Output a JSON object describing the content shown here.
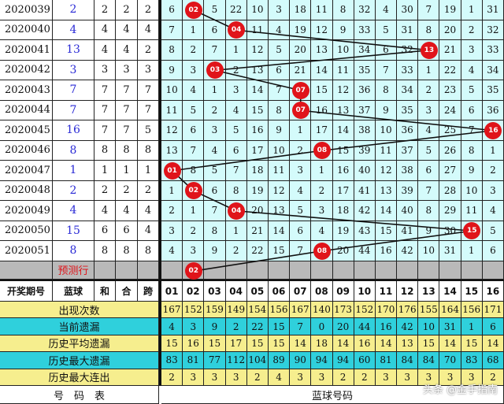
{
  "rows": [
    {
      "period": "2020039",
      "blue": "2",
      "he": "2",
      "mod": "2",
      "span": "2",
      "cells": [
        "6",
        "02",
        "5",
        "22",
        "10",
        "3",
        "18",
        "11",
        "8",
        "32",
        "4",
        "30",
        "7",
        "19",
        "1",
        "31"
      ]
    },
    {
      "period": "2020040",
      "blue": "4",
      "he": "4",
      "mod": "4",
      "span": "4",
      "cells": [
        "7",
        "1",
        "6",
        "04",
        "11",
        "4",
        "19",
        "12",
        "9",
        "33",
        "5",
        "31",
        "8",
        "20",
        "2",
        "32"
      ]
    },
    {
      "period": "2020041",
      "blue": "13",
      "he": "4",
      "mod": "4",
      "span": "2",
      "cells": [
        "8",
        "2",
        "7",
        "1",
        "12",
        "5",
        "20",
        "13",
        "10",
        "34",
        "6",
        "32",
        "13",
        "21",
        "3",
        "33"
      ]
    },
    {
      "period": "2020042",
      "blue": "3",
      "he": "3",
      "mod": "3",
      "span": "3",
      "cells": [
        "9",
        "3",
        "03",
        "2",
        "13",
        "6",
        "21",
        "14",
        "11",
        "35",
        "7",
        "33",
        "1",
        "22",
        "4",
        "34"
      ]
    },
    {
      "period": "2020043",
      "blue": "7",
      "he": "7",
      "mod": "7",
      "span": "7",
      "cells": [
        "10",
        "4",
        "1",
        "3",
        "14",
        "7",
        "07",
        "15",
        "12",
        "36",
        "8",
        "34",
        "2",
        "23",
        "5",
        "35"
      ]
    },
    {
      "period": "2020044",
      "blue": "7",
      "he": "7",
      "mod": "7",
      "span": "7",
      "cells": [
        "11",
        "5",
        "2",
        "4",
        "15",
        "8",
        "07",
        "16",
        "13",
        "37",
        "9",
        "35",
        "3",
        "24",
        "6",
        "36"
      ]
    },
    {
      "period": "2020045",
      "blue": "16",
      "he": "7",
      "mod": "7",
      "span": "5",
      "cells": [
        "12",
        "6",
        "3",
        "5",
        "16",
        "9",
        "1",
        "17",
        "14",
        "38",
        "10",
        "36",
        "4",
        "25",
        "7",
        "16"
      ]
    },
    {
      "period": "2020046",
      "blue": "8",
      "he": "8",
      "mod": "8",
      "span": "8",
      "cells": [
        "13",
        "7",
        "4",
        "6",
        "17",
        "10",
        "2",
        "08",
        "15",
        "39",
        "11",
        "37",
        "5",
        "26",
        "8",
        "1"
      ]
    },
    {
      "period": "2020047",
      "blue": "1",
      "he": "1",
      "mod": "1",
      "span": "1",
      "cells": [
        "01",
        "8",
        "5",
        "7",
        "18",
        "11",
        "3",
        "1",
        "16",
        "40",
        "12",
        "38",
        "6",
        "27",
        "9",
        "2"
      ]
    },
    {
      "period": "2020048",
      "blue": "2",
      "he": "2",
      "mod": "2",
      "span": "2",
      "cells": [
        "1",
        "02",
        "6",
        "8",
        "19",
        "12",
        "4",
        "2",
        "17",
        "41",
        "13",
        "39",
        "7",
        "28",
        "10",
        "3"
      ]
    },
    {
      "period": "2020049",
      "blue": "4",
      "he": "4",
      "mod": "4",
      "span": "4",
      "cells": [
        "2",
        "1",
        "7",
        "04",
        "20",
        "13",
        "5",
        "3",
        "18",
        "42",
        "14",
        "40",
        "8",
        "29",
        "11",
        "4"
      ]
    },
    {
      "period": "2020050",
      "blue": "15",
      "he": "6",
      "mod": "6",
      "span": "4",
      "cells": [
        "3",
        "2",
        "8",
        "1",
        "21",
        "14",
        "6",
        "4",
        "19",
        "43",
        "15",
        "41",
        "9",
        "30",
        "15",
        "5"
      ]
    },
    {
      "period": "2020051",
      "blue": "8",
      "he": "8",
      "mod": "8",
      "span": "8",
      "cells": [
        "4",
        "3",
        "9",
        "2",
        "22",
        "15",
        "7",
        "08",
        "20",
        "44",
        "16",
        "42",
        "10",
        "31",
        "1",
        "6"
      ]
    }
  ],
  "prediction": {
    "label": "预测行",
    "blue": "02"
  },
  "header": {
    "period": "开奖期号",
    "blue": "蓝球",
    "he": "和",
    "mod": "合",
    "span": "跨",
    "numbers": [
      "01",
      "02",
      "03",
      "04",
      "05",
      "06",
      "07",
      "08",
      "09",
      "10",
      "11",
      "12",
      "13",
      "14",
      "15",
      "16"
    ]
  },
  "stats": [
    {
      "label": "出现次数",
      "values": [
        "167",
        "152",
        "159",
        "149",
        "154",
        "156",
        "167",
        "140",
        "173",
        "152",
        "170",
        "176",
        "155",
        "164",
        "156",
        "171"
      ]
    },
    {
      "label": "当前遗漏",
      "values": [
        "4",
        "3",
        "9",
        "2",
        "22",
        "15",
        "7",
        "0",
        "20",
        "44",
        "16",
        "42",
        "10",
        "31",
        "1",
        "6"
      ]
    },
    {
      "label": "历史平均遗漏",
      "values": [
        "15",
        "16",
        "15",
        "17",
        "15",
        "15",
        "14",
        "18",
        "14",
        "16",
        "14",
        "13",
        "15",
        "14",
        "15",
        "14"
      ]
    },
    {
      "label": "历史最大遗漏",
      "values": [
        "83",
        "81",
        "77",
        "112",
        "104",
        "89",
        "90",
        "94",
        "94",
        "60",
        "81",
        "84",
        "84",
        "70",
        "83",
        "68"
      ]
    },
    {
      "label": "历史最大连出",
      "values": [
        "2",
        "3",
        "3",
        "3",
        "2",
        "4",
        "3",
        "3",
        "2",
        "2",
        "3",
        "3",
        "3",
        "3",
        "3",
        "2"
      ]
    }
  ],
  "footer": {
    "left": "号　码　表",
    "right": "蓝球号码"
  },
  "watermark": "头条 @金手指南",
  "colors": {
    "hit": "#e0141a",
    "grid_bg": "#d4fbfb",
    "yellow": "#f6ee8e",
    "cyan": "#2fd0dc",
    "blue_text": "#2b2bd6",
    "pred_text": "#e0141a"
  }
}
